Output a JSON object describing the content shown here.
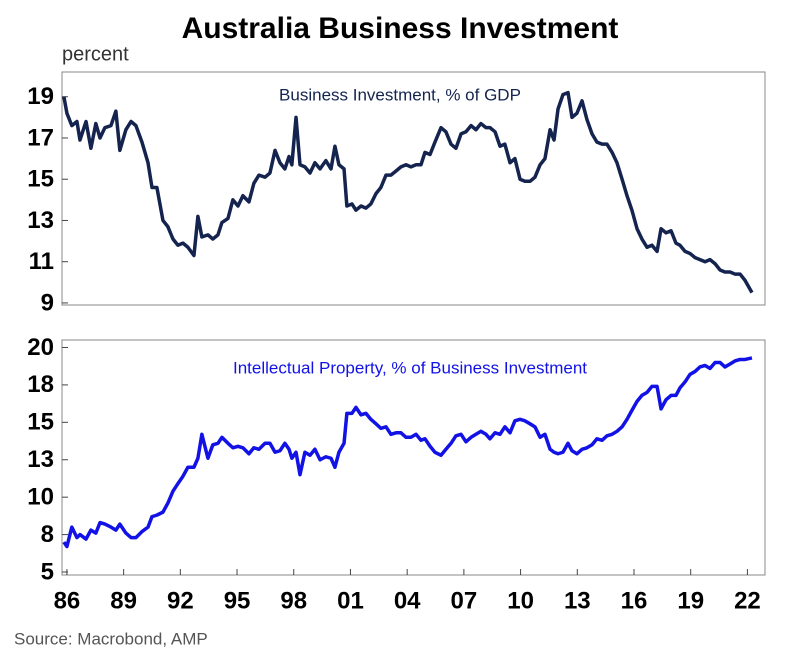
{
  "title": "Australia Business Investment",
  "source": "Source: Macrobond, AMP",
  "chart_data": [
    {
      "type": "line",
      "ylabel": "percent",
      "x": [
        1985.84,
        1986.0,
        1986.26,
        1986.53,
        1986.69,
        1987.01,
        1987.27,
        1987.53,
        1987.75,
        1988.01,
        1988.33,
        1988.59,
        1988.8,
        1989.12,
        1989.39,
        1989.65,
        1989.97,
        1990.29,
        1990.5,
        1990.76,
        1991.08,
        1991.34,
        1991.61,
        1991.87,
        1992.14,
        1992.4,
        1992.72,
        1992.93,
        1993.14,
        1993.46,
        1993.72,
        1993.99,
        1994.2,
        1994.52,
        1994.78,
        1995.05,
        1995.31,
        1995.63,
        1995.89,
        1996.16,
        1996.48,
        1996.74,
        1997.01,
        1997.27,
        1997.53,
        1997.75,
        1997.9,
        1998.12,
        1998.33,
        1998.59,
        1998.86,
        1999.12,
        1999.39,
        1999.7,
        1999.97,
        2000.18,
        2000.39,
        2000.66,
        2000.81,
        2001.08,
        2001.29,
        2001.56,
        2001.82,
        2002.08,
        2002.35,
        2002.61,
        2002.88,
        2003.14,
        2003.41,
        2003.67,
        2003.94,
        2004.2,
        2004.47,
        2004.73,
        2004.94,
        2005.21,
        2005.47,
        2005.79,
        2006.05,
        2006.32,
        2006.58,
        2006.85,
        2007.11,
        2007.38,
        2007.64,
        2007.9,
        2008.17,
        2008.38,
        2008.65,
        2008.91,
        2009.17,
        2009.44,
        2009.7,
        2009.97,
        2010.23,
        2010.5,
        2010.76,
        2011.03,
        2011.29,
        2011.56,
        2011.77,
        2011.98,
        2012.24,
        2012.51,
        2012.72,
        2012.98,
        2013.25,
        2013.51,
        2013.78,
        2014.04,
        2014.31,
        2014.57,
        2014.84,
        2015.1,
        2015.37,
        2015.63,
        2015.89,
        2016.16,
        2016.42,
        2016.69,
        2016.95,
        2017.22,
        2017.43,
        2017.69,
        2017.96,
        2018.22,
        2018.43,
        2018.7,
        2018.96,
        2019.23,
        2019.49,
        2019.76,
        2020.02,
        2020.29,
        2020.55,
        2020.81,
        2021.08,
        2021.34,
        2021.61,
        2021.87,
        2022.24
      ],
      "series": [
        {
          "name": "Business Investment, % of GDP",
          "color": "#14244f",
          "values": [
            19.0,
            18.2,
            17.6,
            17.8,
            16.9,
            17.8,
            16.5,
            17.7,
            17.0,
            17.5,
            17.6,
            18.3,
            16.4,
            17.4,
            17.8,
            17.6,
            16.8,
            15.8,
            14.6,
            14.6,
            13.0,
            12.7,
            12.1,
            11.8,
            11.9,
            11.7,
            11.3,
            13.2,
            12.2,
            12.3,
            12.1,
            12.3,
            12.9,
            13.1,
            14.0,
            13.7,
            14.2,
            13.9,
            14.8,
            15.2,
            15.1,
            15.3,
            16.4,
            15.8,
            15.5,
            16.1,
            15.7,
            18.0,
            15.7,
            15.6,
            15.3,
            15.8,
            15.5,
            15.9,
            15.5,
            16.6,
            15.7,
            15.5,
            13.7,
            13.8,
            13.5,
            13.7,
            13.6,
            13.8,
            14.3,
            14.6,
            15.2,
            15.2,
            15.4,
            15.6,
            15.7,
            15.6,
            15.7,
            15.7,
            16.3,
            16.2,
            16.8,
            17.5,
            17.3,
            16.7,
            16.5,
            17.2,
            17.3,
            17.6,
            17.4,
            17.7,
            17.5,
            17.5,
            17.3,
            16.6,
            16.7,
            15.8,
            16.0,
            15.0,
            14.9,
            14.9,
            15.1,
            15.7,
            16.0,
            17.4,
            16.9,
            18.4,
            19.1,
            19.2,
            18.0,
            18.2,
            18.8,
            17.9,
            17.2,
            16.8,
            16.7,
            16.7,
            16.3,
            15.8,
            15.0,
            14.2,
            13.5,
            12.6,
            12.1,
            11.7,
            11.8,
            11.5,
            12.6,
            12.4,
            12.5,
            11.9,
            11.8,
            11.5,
            11.4,
            11.2,
            11.1,
            11.0,
            11.1,
            10.9,
            10.6,
            10.5,
            10.5,
            10.4,
            10.4,
            10.1,
            9.5
          ]
        }
      ],
      "xlim": [
        1985.74,
        2022.93
      ],
      "ylim": [
        8.9,
        20.2
      ],
      "yticks": [
        9,
        11,
        13,
        15,
        17,
        19
      ]
    },
    {
      "type": "line",
      "x": [
        1985.84,
        1986.0,
        1986.26,
        1986.53,
        1986.69,
        1987.01,
        1987.27,
        1987.53,
        1987.75,
        1988.01,
        1988.33,
        1988.59,
        1988.8,
        1989.12,
        1989.39,
        1989.65,
        1989.97,
        1990.29,
        1990.5,
        1990.76,
        1991.08,
        1991.34,
        1991.61,
        1991.87,
        1992.14,
        1992.4,
        1992.72,
        1992.93,
        1993.14,
        1993.46,
        1993.72,
        1993.99,
        1994.2,
        1994.52,
        1994.78,
        1995.05,
        1995.31,
        1995.63,
        1995.89,
        1996.16,
        1996.48,
        1996.74,
        1997.01,
        1997.27,
        1997.53,
        1997.75,
        1997.9,
        1998.12,
        1998.33,
        1998.59,
        1998.86,
        1999.12,
        1999.39,
        1999.7,
        1999.97,
        2000.18,
        2000.39,
        2000.66,
        2000.81,
        2001.08,
        2001.29,
        2001.56,
        2001.82,
        2002.08,
        2002.35,
        2002.61,
        2002.88,
        2003.14,
        2003.41,
        2003.67,
        2003.94,
        2004.2,
        2004.47,
        2004.73,
        2004.94,
        2005.21,
        2005.47,
        2005.79,
        2006.05,
        2006.32,
        2006.58,
        2006.85,
        2007.11,
        2007.38,
        2007.64,
        2007.9,
        2008.17,
        2008.38,
        2008.65,
        2008.91,
        2009.17,
        2009.44,
        2009.7,
        2009.97,
        2010.23,
        2010.5,
        2010.76,
        2011.03,
        2011.29,
        2011.56,
        2011.77,
        2011.98,
        2012.24,
        2012.51,
        2012.72,
        2012.98,
        2013.25,
        2013.51,
        2013.78,
        2014.04,
        2014.31,
        2014.57,
        2014.84,
        2015.1,
        2015.37,
        2015.63,
        2015.89,
        2016.16,
        2016.42,
        2016.69,
        2016.95,
        2017.22,
        2017.43,
        2017.69,
        2017.96,
        2018.22,
        2018.43,
        2018.7,
        2018.96,
        2019.23,
        2019.49,
        2019.76,
        2020.02,
        2020.29,
        2020.55,
        2020.81,
        2021.08,
        2021.34,
        2021.61,
        2021.87,
        2022.24
      ],
      "series": [
        {
          "name": "Intellectual Property, % of Business Investment",
          "color": "#1212e6",
          "values": [
            7.0,
            6.7,
            8.0,
            7.3,
            7.5,
            7.2,
            7.8,
            7.6,
            8.3,
            8.2,
            8.0,
            7.8,
            8.2,
            7.6,
            7.3,
            7.3,
            7.7,
            8.0,
            8.7,
            8.8,
            9.0,
            9.6,
            10.4,
            10.9,
            11.4,
            12.0,
            12.0,
            12.6,
            14.2,
            12.6,
            13.5,
            13.6,
            14.0,
            13.6,
            13.3,
            13.4,
            13.3,
            12.9,
            13.3,
            13.2,
            13.6,
            13.6,
            13.0,
            13.1,
            13.6,
            13.2,
            12.6,
            13.0,
            11.5,
            13.0,
            12.8,
            13.2,
            12.5,
            12.7,
            12.6,
            12.0,
            13.0,
            13.6,
            15.6,
            15.6,
            16.0,
            15.5,
            15.6,
            15.2,
            14.9,
            14.6,
            14.7,
            14.2,
            14.3,
            14.3,
            14.0,
            14.0,
            14.2,
            13.8,
            13.9,
            13.4,
            13.0,
            12.8,
            13.2,
            13.6,
            14.1,
            14.2,
            13.7,
            14.0,
            14.2,
            14.4,
            14.2,
            13.9,
            14.3,
            14.2,
            14.7,
            14.3,
            15.1,
            15.2,
            15.1,
            14.9,
            14.7,
            14.0,
            14.2,
            13.2,
            13.0,
            12.9,
            13.0,
            13.6,
            13.1,
            12.9,
            13.2,
            13.3,
            13.5,
            13.9,
            13.8,
            14.1,
            14.2,
            14.4,
            14.7,
            15.2,
            15.8,
            16.4,
            16.8,
            17.0,
            17.4,
            17.4,
            15.9,
            16.5,
            16.8,
            16.8,
            17.3,
            17.7,
            18.2,
            18.4,
            18.7,
            18.8,
            18.6,
            19.0,
            19.0,
            18.7,
            18.9,
            19.1,
            19.2,
            19.2,
            19.3
          ]
        }
      ],
      "xlim": [
        1985.74,
        2022.93
      ],
      "ylim": [
        4.8,
        20.5
      ],
      "yticks": [
        5,
        {
          "value": 7.5,
          "label": "8"
        },
        10,
        {
          "value": 12.5,
          "label": "13"
        },
        15,
        {
          "value": 17.5,
          "label": "18"
        },
        20
      ],
      "xticks": [
        {
          "value": 1986,
          "label": "86"
        },
        {
          "value": 1989,
          "label": "89"
        },
        {
          "value": 1992,
          "label": "92"
        },
        {
          "value": 1995,
          "label": "95"
        },
        {
          "value": 1998,
          "label": "98"
        },
        {
          "value": 2001,
          "label": "01"
        },
        {
          "value": 2004,
          "label": "04"
        },
        {
          "value": 2007,
          "label": "07"
        },
        {
          "value": 2010,
          "label": "10"
        },
        {
          "value": 2013,
          "label": "13"
        },
        {
          "value": 2016,
          "label": "16"
        },
        {
          "value": 2019,
          "label": "19"
        },
        {
          "value": 2022,
          "label": "22"
        }
      ]
    }
  ]
}
